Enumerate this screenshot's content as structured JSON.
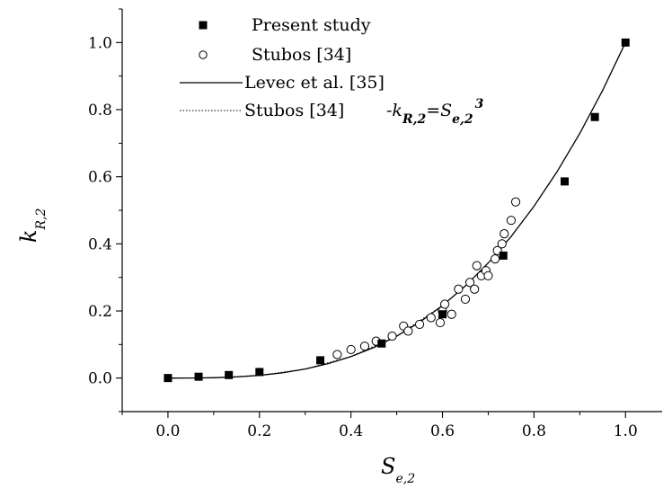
{
  "chart_data": {
    "type": "scatter",
    "title": "",
    "xlabel": {
      "main": "S",
      "sub": "e,2"
    },
    "ylabel": {
      "main": "k",
      "sub": "R,2"
    },
    "xlim": [
      -0.1,
      1.08
    ],
    "ylim": [
      -0.1,
      1.1
    ],
    "x_ticks": [
      0.0,
      0.2,
      0.4,
      0.6,
      0.8,
      1.0
    ],
    "x_tick_labels": [
      "0.0",
      "0.2",
      "0.4",
      "0.6",
      "0.8",
      "1.0"
    ],
    "y_ticks": [
      0.0,
      0.2,
      0.4,
      0.6,
      0.8,
      1.0
    ],
    "y_tick_labels": [
      "0.0",
      "0.2",
      "0.4",
      "0.6",
      "0.8",
      "1.0"
    ],
    "grid": false,
    "legend_position": "top-left",
    "series": [
      {
        "name": "Present study",
        "marker": "filled-square",
        "color": "#000000",
        "points": [
          [
            0.0,
            0.0
          ],
          [
            0.067,
            0.004
          ],
          [
            0.133,
            0.009
          ],
          [
            0.2,
            0.018
          ],
          [
            0.333,
            0.053
          ],
          [
            0.467,
            0.103
          ],
          [
            0.6,
            0.19
          ],
          [
            0.733,
            0.365
          ],
          [
            0.867,
            0.586
          ],
          [
            0.933,
            0.778
          ],
          [
            1.0,
            1.0
          ]
        ]
      },
      {
        "name": "Stubos [34]",
        "marker": "open-circle",
        "color": "#000000",
        "points": [
          [
            0.37,
            0.07
          ],
          [
            0.4,
            0.085
          ],
          [
            0.43,
            0.095
          ],
          [
            0.455,
            0.11
          ],
          [
            0.49,
            0.125
          ],
          [
            0.515,
            0.155
          ],
          [
            0.525,
            0.14
          ],
          [
            0.55,
            0.16
          ],
          [
            0.575,
            0.18
          ],
          [
            0.595,
            0.165
          ],
          [
            0.6,
            0.2
          ],
          [
            0.605,
            0.22
          ],
          [
            0.62,
            0.19
          ],
          [
            0.635,
            0.265
          ],
          [
            0.65,
            0.235
          ],
          [
            0.66,
            0.285
          ],
          [
            0.67,
            0.265
          ],
          [
            0.675,
            0.335
          ],
          [
            0.685,
            0.305
          ],
          [
            0.695,
            0.32
          ],
          [
            0.7,
            0.305
          ],
          [
            0.715,
            0.355
          ],
          [
            0.72,
            0.38
          ],
          [
            0.73,
            0.4
          ],
          [
            0.735,
            0.43
          ],
          [
            0.75,
            0.47
          ],
          [
            0.76,
            0.525
          ]
        ]
      },
      {
        "name": "Levec et al. [35]",
        "line": "solid",
        "color": "#000000",
        "x": [
          0.0,
          0.05,
          0.1,
          0.15,
          0.2,
          0.25,
          0.3,
          0.35,
          0.4,
          0.45,
          0.5,
          0.55,
          0.6,
          0.65,
          0.7,
          0.75,
          0.8,
          0.85,
          0.9,
          0.95,
          1.0
        ],
        "y": [
          0.0,
          0.0001,
          0.001,
          0.0034,
          0.008,
          0.0156,
          0.027,
          0.0429,
          0.064,
          0.0911,
          0.125,
          0.1664,
          0.216,
          0.2746,
          0.343,
          0.4219,
          0.512,
          0.6141,
          0.729,
          0.8574,
          1.0
        ]
      },
      {
        "name": "Stubos [34]",
        "line": "dotted",
        "color": "#000000",
        "formula": {
          "lhs": "-k",
          "lhs_sub": "R,2",
          "eq": "=S",
          "rhs_sub": "e,2",
          "rhs_sup": "3"
        },
        "x": [
          0.0,
          0.1,
          0.2,
          0.3,
          0.4,
          0.5,
          0.6
        ],
        "y": [
          0.0,
          0.001,
          0.008,
          0.027,
          0.064,
          0.125,
          0.216
        ]
      }
    ]
  }
}
